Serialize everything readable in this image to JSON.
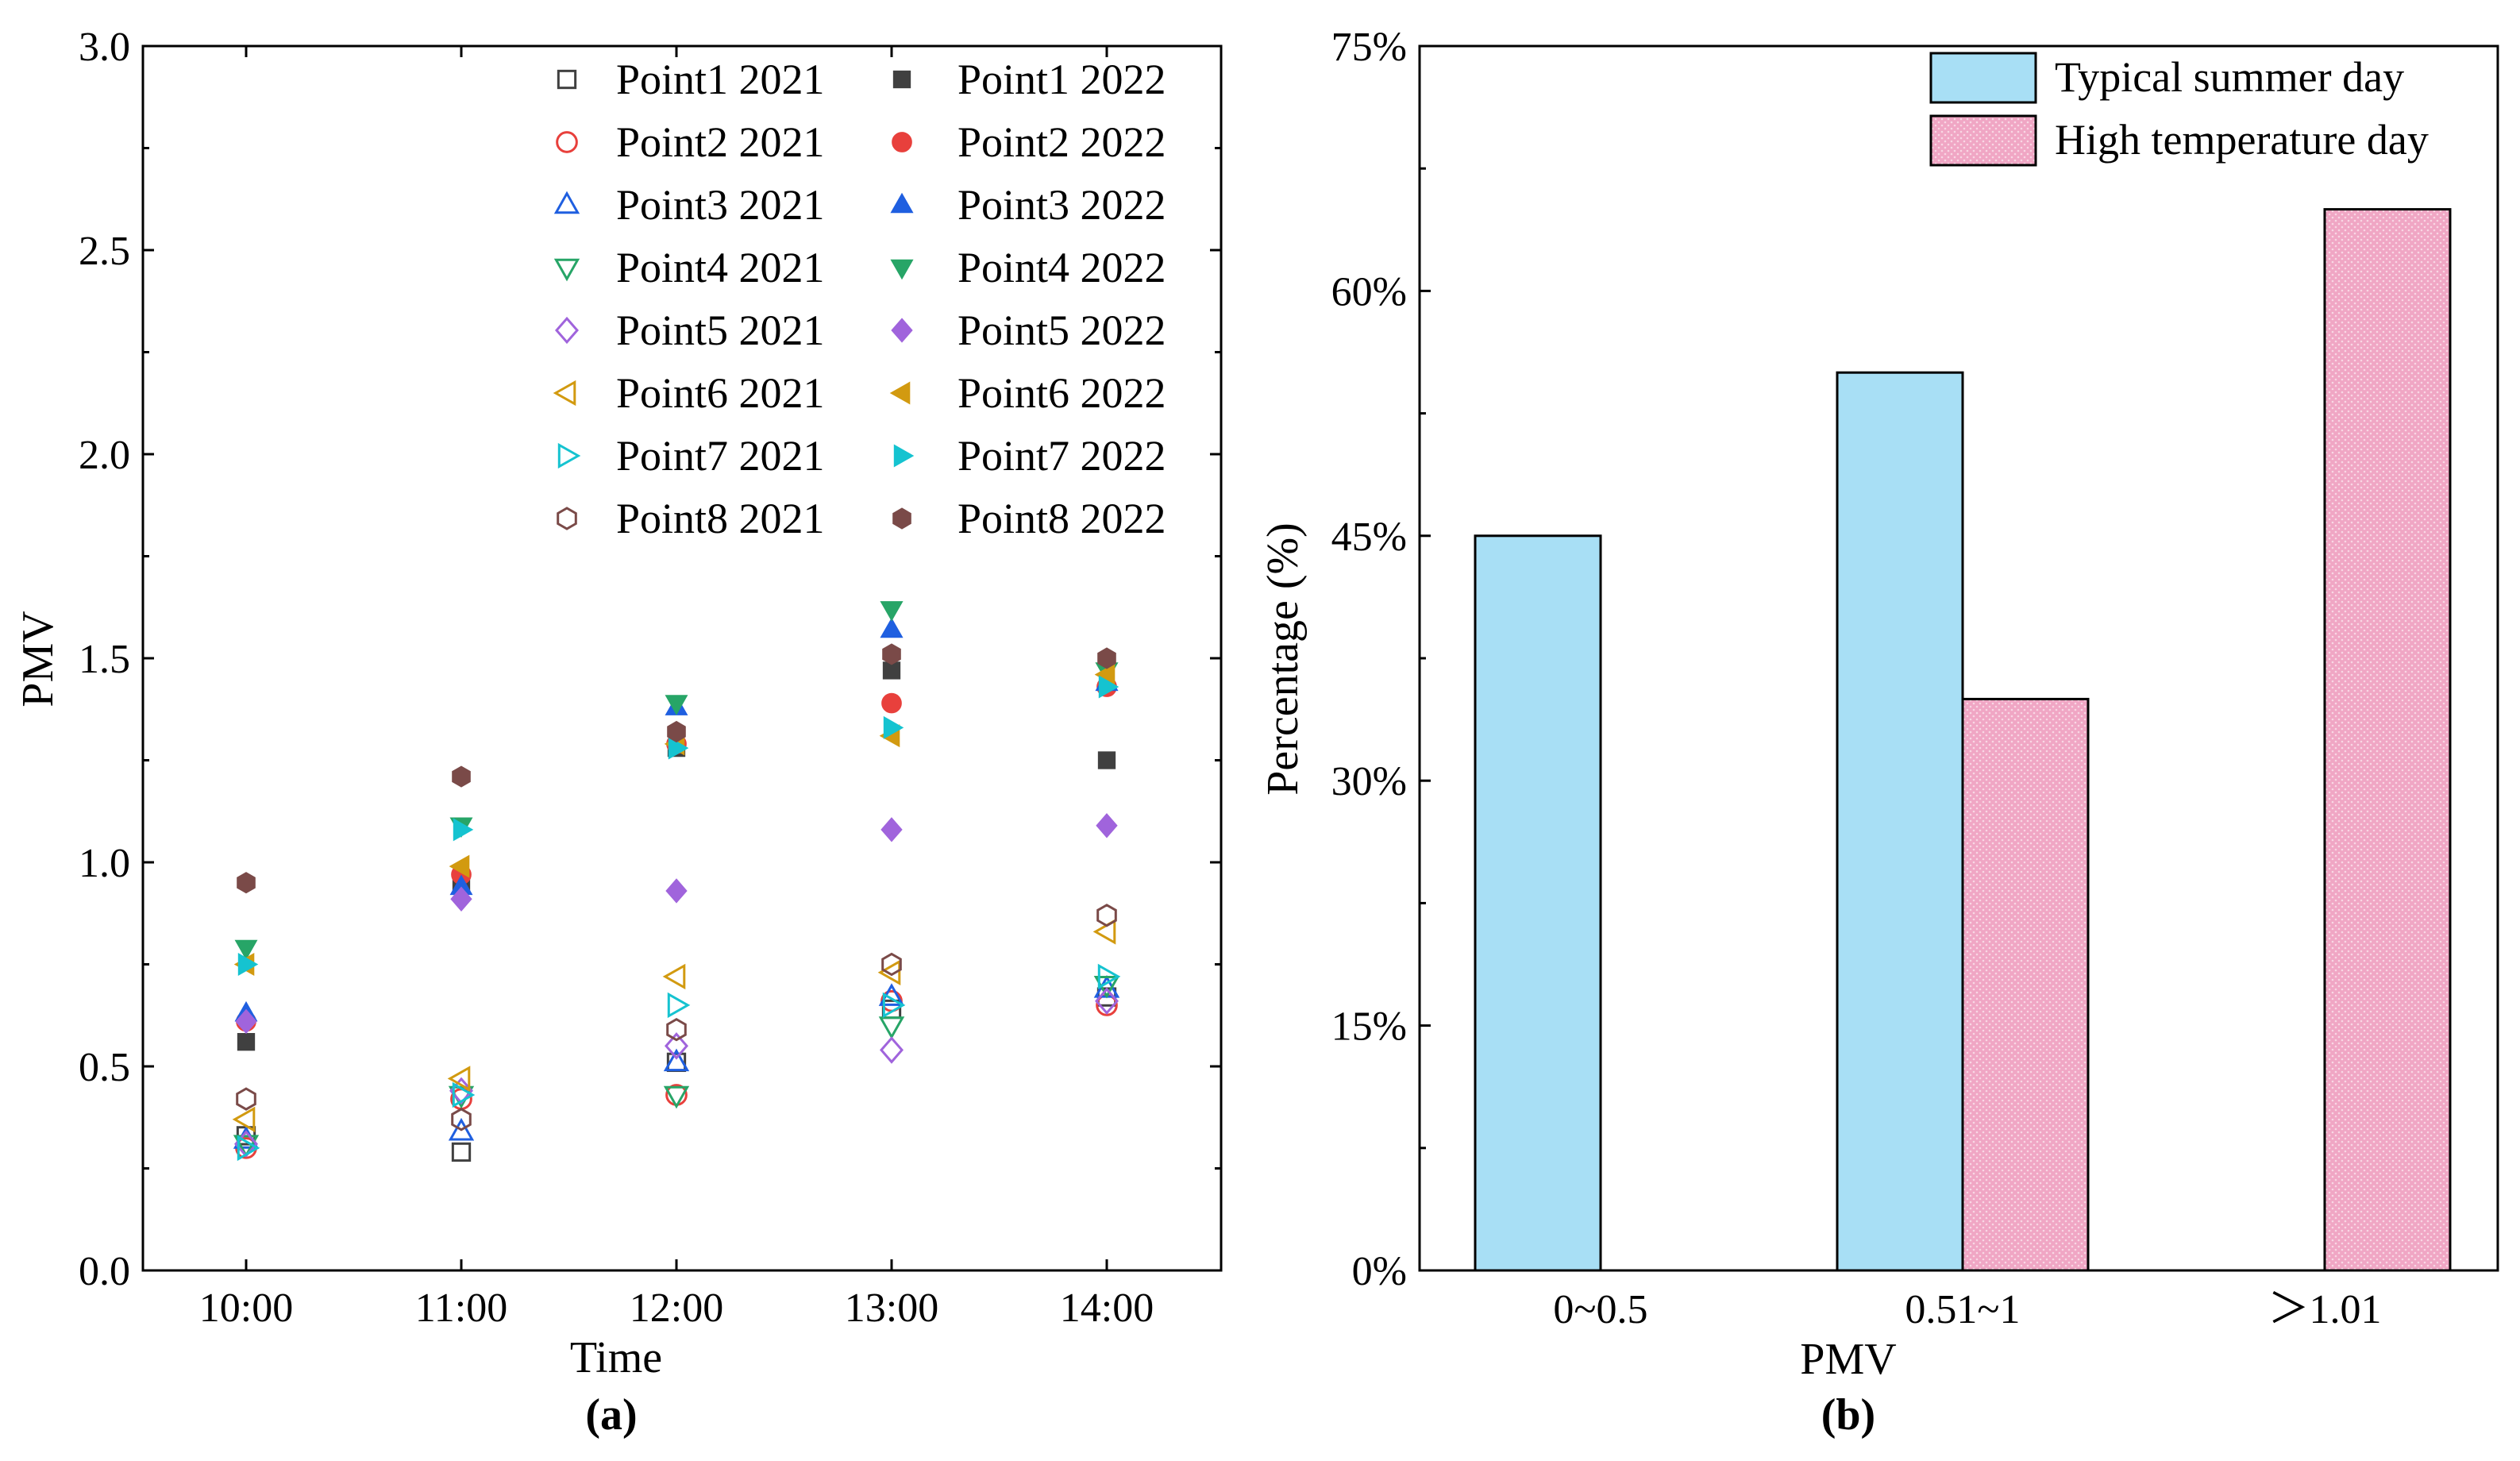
{
  "colors": {
    "point1": "#404040",
    "point2": "#e8403c",
    "point3": "#1f5fe0",
    "point4": "#27a567",
    "point5": "#a064dc",
    "point6": "#d29a10",
    "point7": "#15c3d0",
    "point8": "#7a4a48",
    "typical_fill": "#a8dff5",
    "high_fill": "#f0a6c4"
  },
  "chart_data": [
    {
      "panel": "(a)",
      "type": "scatter",
      "xlabel": "Time",
      "ylabel": "PMV",
      "categories": [
        "10:00",
        "11:00",
        "12:00",
        "13:00",
        "14:00"
      ],
      "ylim": [
        0.0,
        3.0
      ],
      "yticks": [
        "0.0",
        "0.5",
        "1.0",
        "1.5",
        "2.0",
        "2.5",
        "3.0"
      ],
      "legend_position": "top-right",
      "series": [
        {
          "name": "Point1 2021",
          "marker": "square",
          "filled": false,
          "color_key": "point1",
          "values": [
            0.33,
            0.29,
            0.51,
            0.64,
            0.67
          ]
        },
        {
          "name": "Point2 2021",
          "marker": "circle",
          "filled": false,
          "color_key": "point2",
          "values": [
            0.3,
            0.42,
            0.43,
            0.66,
            0.65
          ]
        },
        {
          "name": "Point3 2021",
          "marker": "triangle-up",
          "filled": false,
          "color_key": "point3",
          "values": [
            0.32,
            0.34,
            0.51,
            0.67,
            0.69
          ]
        },
        {
          "name": "Point4 2021",
          "marker": "triangle-down",
          "filled": false,
          "color_key": "point4",
          "values": [
            0.31,
            0.43,
            0.43,
            0.6,
            0.7
          ]
        },
        {
          "name": "Point5 2021",
          "marker": "diamond",
          "filled": false,
          "color_key": "point5",
          "values": [
            0.31,
            0.44,
            0.55,
            0.54,
            0.66
          ]
        },
        {
          "name": "Point6 2021",
          "marker": "triangle-left",
          "filled": false,
          "color_key": "point6",
          "values": [
            0.37,
            0.47,
            0.72,
            0.73,
            0.83
          ]
        },
        {
          "name": "Point7 2021",
          "marker": "triangle-right",
          "filled": false,
          "color_key": "point7",
          "values": [
            0.3,
            0.43,
            0.65,
            0.65,
            0.72
          ]
        },
        {
          "name": "Point8 2021",
          "marker": "hexagon",
          "filled": false,
          "color_key": "point8",
          "values": [
            0.42,
            0.37,
            0.59,
            0.75,
            0.87
          ]
        },
        {
          "name": "Point1 2022",
          "marker": "square",
          "filled": true,
          "color_key": "point1",
          "values": [
            0.56,
            0.95,
            1.28,
            1.47,
            1.25
          ]
        },
        {
          "name": "Point2 2022",
          "marker": "circle",
          "filled": true,
          "color_key": "point2",
          "values": [
            0.61,
            0.97,
            1.29,
            1.39,
            1.43
          ]
        },
        {
          "name": "Point3 2022",
          "marker": "triangle-up",
          "filled": true,
          "color_key": "point3",
          "values": [
            0.63,
            0.94,
            1.38,
            1.57,
            1.44
          ]
        },
        {
          "name": "Point4 2022",
          "marker": "triangle-down",
          "filled": true,
          "color_key": "point4",
          "values": [
            0.79,
            1.09,
            1.39,
            1.62,
            1.47
          ]
        },
        {
          "name": "Point5 2022",
          "marker": "diamond",
          "filled": true,
          "color_key": "point5",
          "values": [
            0.61,
            0.91,
            0.93,
            1.08,
            1.09
          ]
        },
        {
          "name": "Point6 2022",
          "marker": "triangle-left",
          "filled": true,
          "color_key": "point6",
          "values": [
            0.75,
            0.99,
            1.29,
            1.31,
            1.46
          ]
        },
        {
          "name": "Point7 2022",
          "marker": "triangle-right",
          "filled": true,
          "color_key": "point7",
          "values": [
            0.75,
            1.08,
            1.28,
            1.33,
            1.43
          ]
        },
        {
          "name": "Point8 2022",
          "marker": "hexagon",
          "filled": true,
          "color_key": "point8",
          "values": [
            0.95,
            1.21,
            1.32,
            1.51,
            1.5
          ]
        }
      ]
    },
    {
      "panel": "(b)",
      "type": "bar",
      "xlabel": "PMV",
      "ylabel": "Percentage (%)",
      "categories": [
        "0~0.5",
        "0.51~1",
        "＞1.01"
      ],
      "ylim": [
        0,
        75
      ],
      "yticks": [
        "0%",
        "15%",
        "30%",
        "45%",
        "60%",
        "75%"
      ],
      "legend_position": "top-right",
      "series": [
        {
          "name": "Typical summer day",
          "color_key": "typical_fill",
          "pattern": "solid",
          "values": [
            45,
            55,
            0
          ]
        },
        {
          "name": "High temperature day",
          "color_key": "high_fill",
          "pattern": "dotted",
          "values": [
            0,
            35,
            65
          ]
        }
      ]
    }
  ]
}
